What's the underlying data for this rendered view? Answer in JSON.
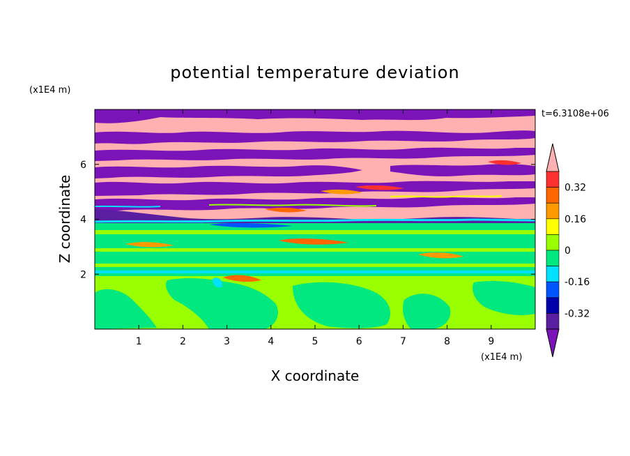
{
  "chart_data": {
    "type": "heatmap",
    "title": "potential temperature deviation",
    "xlabel": "X coordinate",
    "ylabel": "Z coordinate",
    "x_unit": "(x1E4 m)",
    "y_unit": "(x1E4 m)",
    "time_label": "t=6.3108e+06",
    "xlim": [
      0,
      10
    ],
    "ylim": [
      0,
      8
    ],
    "x_ticks": [
      1,
      2,
      3,
      4,
      5,
      6,
      7,
      8,
      9
    ],
    "y_ticks": [
      2,
      4,
      6
    ],
    "levels": [
      -0.4,
      -0.32,
      -0.24,
      -0.16,
      -0.08,
      0,
      0.08,
      0.16,
      0.24,
      0.32,
      0.4
    ],
    "colorbar_labels": [
      "0.32",
      "0.16",
      "0",
      "-0.16",
      "-0.32"
    ],
    "colorbar_label_values": [
      0.32,
      0.16,
      0,
      -0.16,
      -0.32
    ],
    "colorbar_colors": [
      "#ffb0b0",
      "#ff3030",
      "#ff6600",
      "#ff9900",
      "#ffff00",
      "#99ff00",
      "#00e87f",
      "#00e0ff",
      "#0055ff",
      "#0000aa",
      "#5a1fa0",
      "#7a14b8"
    ],
    "color_scheme": "rainbow, purple = negative, pink = positive",
    "regions": [
      {
        "z_range": [
          0,
          2.0
        ],
        "dominant_value": 0.04,
        "description": "mostly yellow-green with green patches"
      },
      {
        "z_range": [
          2.0,
          4.0
        ],
        "dominant_value": -0.04,
        "description": "mostly green with small colored streaks"
      },
      {
        "z_range": [
          4.0,
          8.0
        ],
        "dominant_value": "alternating",
        "description": "alternating purple (< -0.4) and pink (> 0.4) layers"
      }
    ]
  }
}
